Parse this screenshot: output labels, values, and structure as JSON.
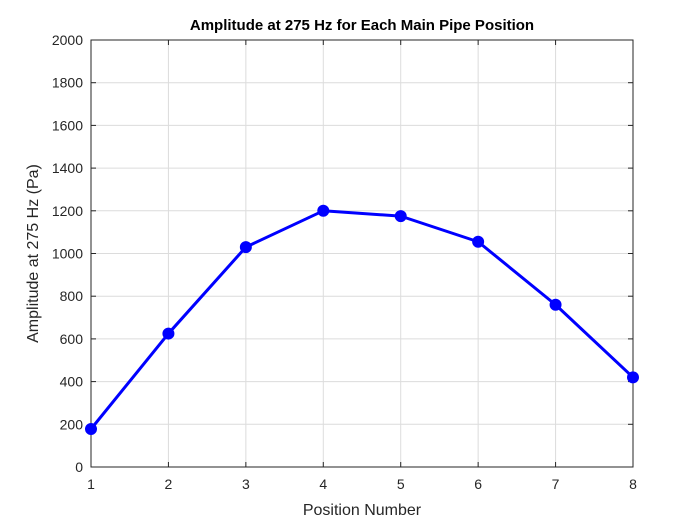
{
  "chart_data": {
    "type": "line",
    "title": "Amplitude at 275 Hz for Each Main Pipe Position",
    "xlabel": "Position Number",
    "ylabel": "Amplitude at 275 Hz (Pa)",
    "xlim": [
      1,
      8
    ],
    "ylim": [
      0,
      2000
    ],
    "xticks": [
      1,
      2,
      3,
      4,
      5,
      6,
      7,
      8
    ],
    "yticks": [
      0,
      200,
      400,
      600,
      800,
      1000,
      1200,
      1400,
      1600,
      1800,
      2000
    ],
    "grid": true,
    "series": [
      {
        "x": [
          1,
          2,
          3,
          4,
          5,
          6,
          7,
          8
        ],
        "values": [
          178,
          625,
          1030,
          1200,
          1175,
          1055,
          760,
          420
        ],
        "color": "#0000ff",
        "marker": "circle"
      }
    ]
  }
}
